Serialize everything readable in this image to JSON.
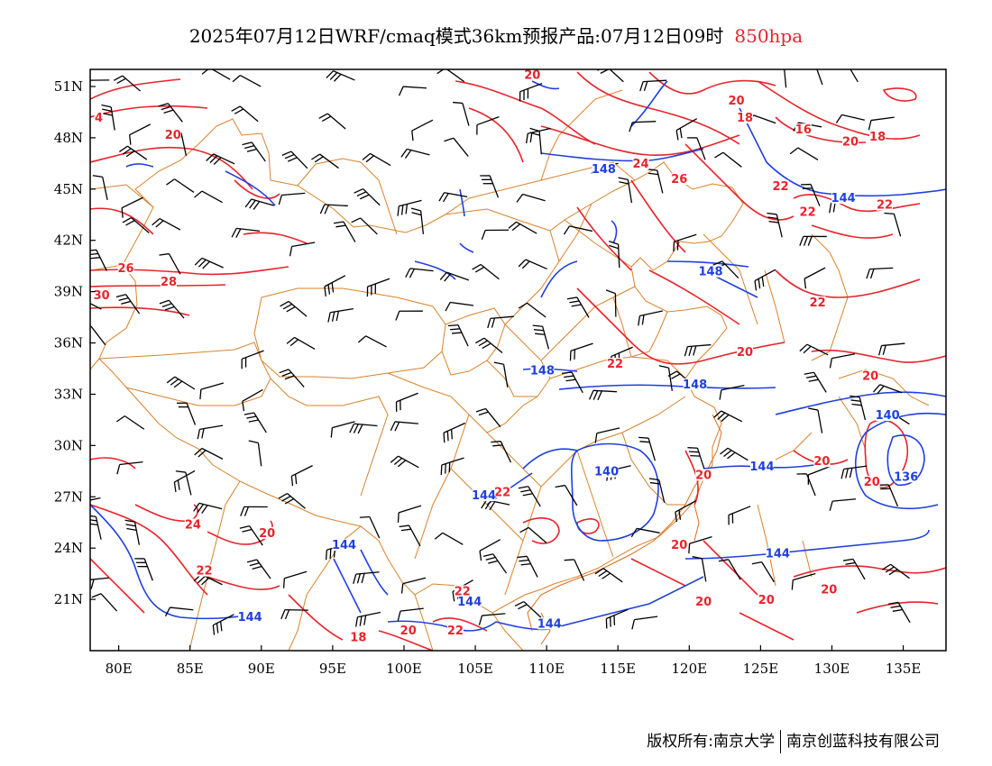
{
  "title": {
    "main": "2025年07月12日WRF/cmaq模式36km预报产品:07月12日09时",
    "level": "850hpa",
    "level_color": "#e8242b"
  },
  "map": {
    "lon_range": [
      78,
      138
    ],
    "lat_range": [
      18,
      52
    ],
    "x_ticks": [
      {
        "lon": 80,
        "label": "80E"
      },
      {
        "lon": 85,
        "label": "85E"
      },
      {
        "lon": 90,
        "label": "90E"
      },
      {
        "lon": 95,
        "label": "95E"
      },
      {
        "lon": 100,
        "label": "100E"
      },
      {
        "lon": 105,
        "label": "105E"
      },
      {
        "lon": 110,
        "label": "110E"
      },
      {
        "lon": 115,
        "label": "115E"
      },
      {
        "lon": 120,
        "label": "120E"
      },
      {
        "lon": 125,
        "label": "125E"
      },
      {
        "lon": 130,
        "label": "130E"
      },
      {
        "lon": 135,
        "label": "135E"
      }
    ],
    "y_ticks": [
      {
        "lat": 21,
        "label": "21N"
      },
      {
        "lat": 24,
        "label": "24N"
      },
      {
        "lat": 27,
        "label": "27N"
      },
      {
        "lat": 30,
        "label": "30N"
      },
      {
        "lat": 33,
        "label": "33N"
      },
      {
        "lat": 36,
        "label": "36N"
      },
      {
        "lat": 39,
        "label": "39N"
      },
      {
        "lat": 42,
        "label": "42N"
      },
      {
        "lat": 45,
        "label": "45N"
      },
      {
        "lat": 48,
        "label": "48N"
      },
      {
        "lat": 51,
        "label": "51N"
      }
    ],
    "colors": {
      "temperature": "#e8242b",
      "height": "#1f3fe0",
      "border": "#d9822b",
      "wind": "#000000"
    },
    "temperature_labels": [
      {
        "lon": 78.6,
        "lat": 49.0,
        "text": "4"
      },
      {
        "lon": 83.8,
        "lat": 48.0,
        "text": "20"
      },
      {
        "lon": 109.0,
        "lat": 51.5,
        "text": "20"
      },
      {
        "lon": 123.3,
        "lat": 50.0,
        "text": "20"
      },
      {
        "lon": 123.9,
        "lat": 49.0,
        "text": "18"
      },
      {
        "lon": 128.0,
        "lat": 48.3,
        "text": "16"
      },
      {
        "lon": 131.3,
        "lat": 47.6,
        "text": "20"
      },
      {
        "lon": 133.2,
        "lat": 47.9,
        "text": "18"
      },
      {
        "lon": 116.6,
        "lat": 46.3,
        "text": "24"
      },
      {
        "lon": 119.3,
        "lat": 45.4,
        "text": "26"
      },
      {
        "lon": 126.4,
        "lat": 45.0,
        "text": "22"
      },
      {
        "lon": 128.3,
        "lat": 43.5,
        "text": "22"
      },
      {
        "lon": 133.7,
        "lat": 43.9,
        "text": "22"
      },
      {
        "lon": 80.5,
        "lat": 40.2,
        "text": "26"
      },
      {
        "lon": 78.8,
        "lat": 38.6,
        "text": "30"
      },
      {
        "lon": 83.5,
        "lat": 39.4,
        "text": "28"
      },
      {
        "lon": 129.0,
        "lat": 38.2,
        "text": "22"
      },
      {
        "lon": 123.9,
        "lat": 35.3,
        "text": "20"
      },
      {
        "lon": 114.8,
        "lat": 34.6,
        "text": "22"
      },
      {
        "lon": 132.7,
        "lat": 33.9,
        "text": "20"
      },
      {
        "lon": 129.3,
        "lat": 28.9,
        "text": "20"
      },
      {
        "lon": 121.0,
        "lat": 28.1,
        "text": "20"
      },
      {
        "lon": 132.8,
        "lat": 27.7,
        "text": "20"
      },
      {
        "lon": 106.9,
        "lat": 27.1,
        "text": "22"
      },
      {
        "lon": 85.2,
        "lat": 25.2,
        "text": "24"
      },
      {
        "lon": 90.4,
        "lat": 24.7,
        "text": "20"
      },
      {
        "lon": 86.0,
        "lat": 22.5,
        "text": "22"
      },
      {
        "lon": 119.3,
        "lat": 24.0,
        "text": "20"
      },
      {
        "lon": 104.1,
        "lat": 21.3,
        "text": "22"
      },
      {
        "lon": 121.0,
        "lat": 20.7,
        "text": "20"
      },
      {
        "lon": 125.4,
        "lat": 20.8,
        "text": "20"
      },
      {
        "lon": 129.8,
        "lat": 21.4,
        "text": "20"
      },
      {
        "lon": 100.3,
        "lat": 19.0,
        "text": "20"
      },
      {
        "lon": 96.8,
        "lat": 18.6,
        "text": "18"
      },
      {
        "lon": 103.6,
        "lat": 19.0,
        "text": "22"
      }
    ],
    "height_labels": [
      {
        "lon": 114.0,
        "lat": 46.0,
        "text": "148"
      },
      {
        "lon": 130.8,
        "lat": 44.3,
        "text": "144"
      },
      {
        "lon": 121.5,
        "lat": 40.0,
        "text": "148"
      },
      {
        "lon": 109.7,
        "lat": 34.2,
        "text": "148"
      },
      {
        "lon": 120.4,
        "lat": 33.4,
        "text": "148"
      },
      {
        "lon": 133.9,
        "lat": 31.6,
        "text": "140"
      },
      {
        "lon": 114.2,
        "lat": 28.3,
        "text": "140"
      },
      {
        "lon": 125.1,
        "lat": 28.6,
        "text": "144"
      },
      {
        "lon": 135.2,
        "lat": 28.0,
        "text": "136"
      },
      {
        "lon": 105.6,
        "lat": 26.9,
        "text": "144"
      },
      {
        "lon": 95.8,
        "lat": 24.0,
        "text": "144"
      },
      {
        "lon": 104.6,
        "lat": 20.7,
        "text": "144"
      },
      {
        "lon": 89.2,
        "lat": 19.8,
        "text": "144"
      },
      {
        "lon": 110.2,
        "lat": 19.4,
        "text": "144"
      },
      {
        "lon": 126.2,
        "lat": 23.5,
        "text": "144"
      }
    ]
  },
  "footer": {
    "left": "版权所有:南京大学",
    "right": "南京创蓝科技有限公司"
  }
}
